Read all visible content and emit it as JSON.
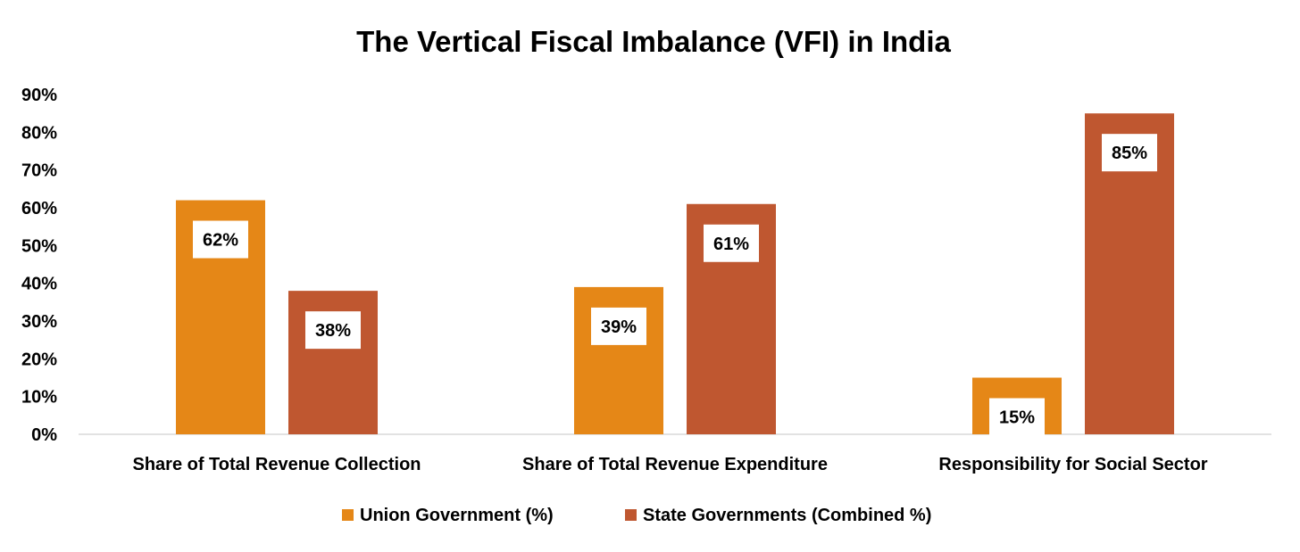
{
  "chart_data": {
    "type": "bar",
    "title": "The Vertical Fiscal Imbalance (VFI) in India",
    "xlabel": "",
    "ylabel": "",
    "ylim": [
      0,
      90
    ],
    "yticks": [
      "0%",
      "10%",
      "20%",
      "30%",
      "40%",
      "50%",
      "60%",
      "70%",
      "80%",
      "90%"
    ],
    "categories": [
      "Share of Total Revenue Collection",
      "Share of Total Revenue Expenditure",
      "Responsibility for Social Sector"
    ],
    "series": [
      {
        "name": "Union Government (%)",
        "color": "#E58717",
        "values": [
          62,
          39,
          15
        ],
        "labels": [
          "62%",
          "39%",
          "15%"
        ]
      },
      {
        "name": "State Governments (Combined %)",
        "color": "#BF5730",
        "values": [
          38,
          61,
          85
        ],
        "labels": [
          "38%",
          "61%",
          "85%"
        ]
      }
    ],
    "grid": false,
    "legend_position": "bottom"
  }
}
